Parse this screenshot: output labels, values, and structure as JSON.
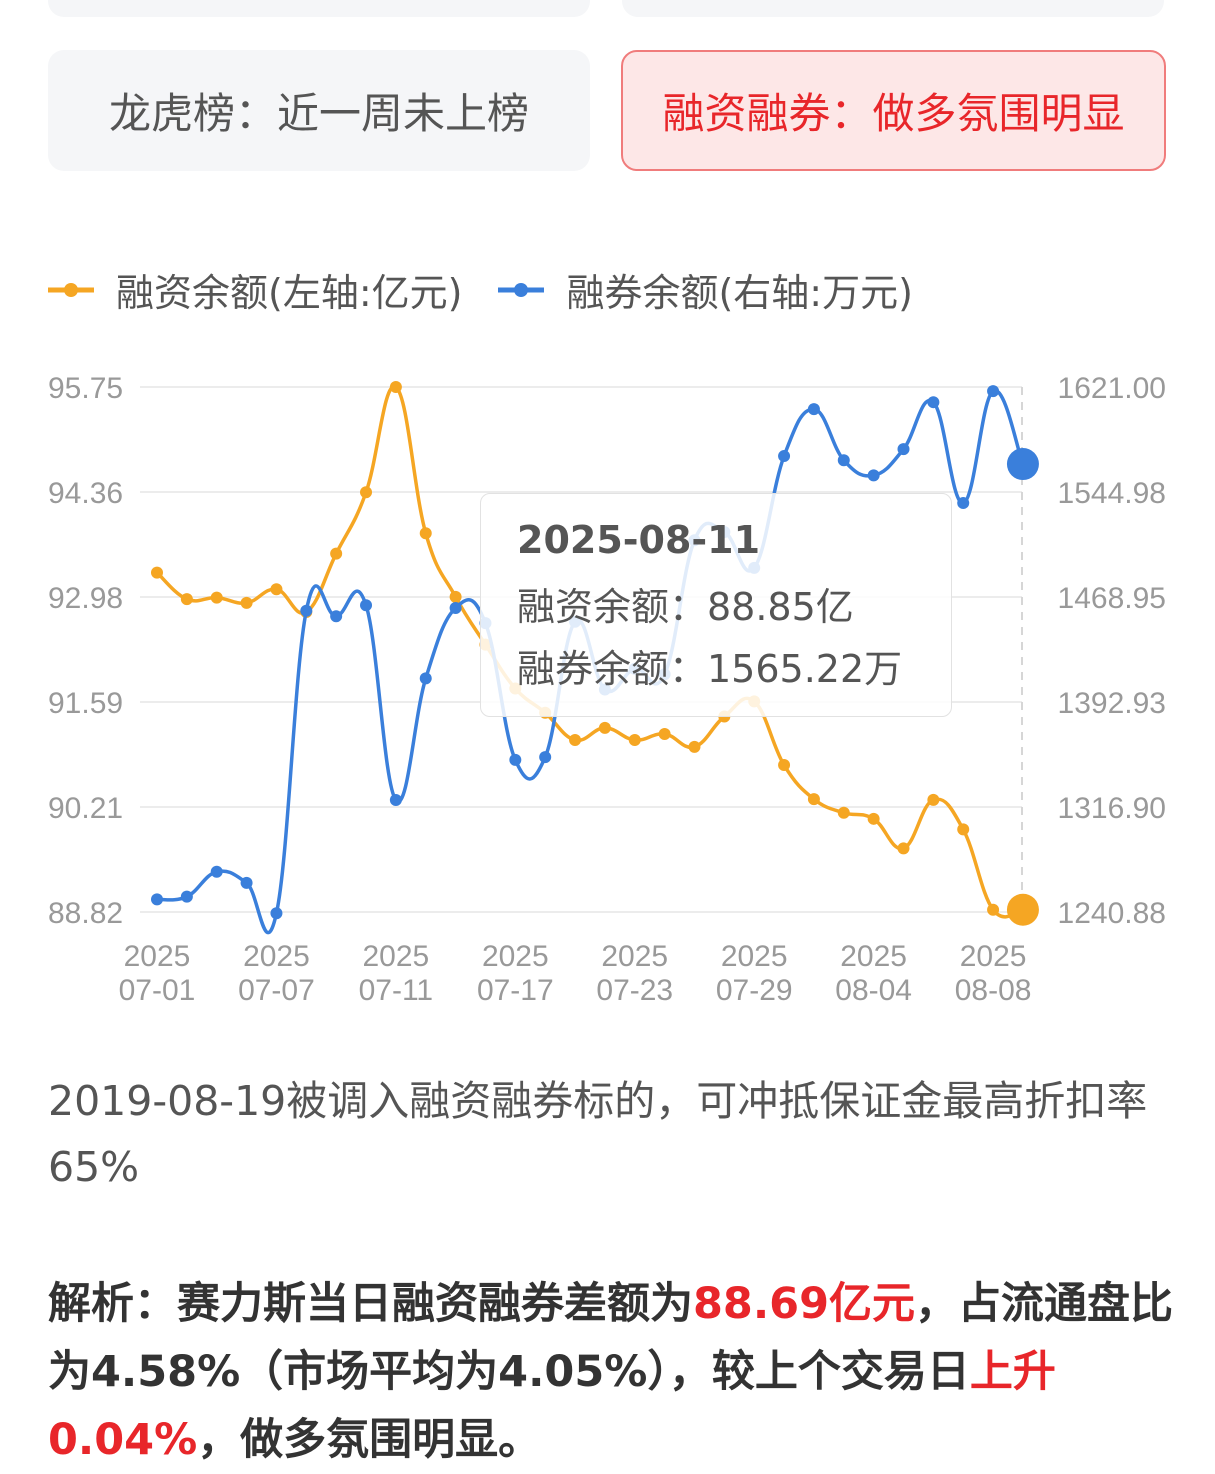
{
  "cards": {
    "top_left": "",
    "top_right": "",
    "dragon_tiger": "龙虎榜：近一周未上榜",
    "margin": "融资融券：做多氛围明显"
  },
  "colors": {
    "financing": "#f5a623",
    "lending": "#3a7fdb",
    "red": "#e8262a"
  },
  "legend": [
    {
      "label": "融资余额(左轴:亿元)"
    },
    {
      "label": "融券余额(右轴:万元)"
    }
  ],
  "tooltip": {
    "date": "2025-08-11",
    "financing": "融资余额：88.85亿",
    "lending": "融券余额：1565.22万"
  },
  "chart_data": {
    "type": "line",
    "x": [
      "2025-07-01",
      "2025-07-02",
      "2025-07-03",
      "2025-07-04",
      "2025-07-07",
      "2025-07-08",
      "2025-07-09",
      "2025-07-10",
      "2025-07-11",
      "2025-07-14",
      "2025-07-15",
      "2025-07-16",
      "2025-07-17",
      "2025-07-18",
      "2025-07-21",
      "2025-07-22",
      "2025-07-23",
      "2025-07-24",
      "2025-07-25",
      "2025-07-28",
      "2025-07-29",
      "2025-07-30",
      "2025-07-31",
      "2025-08-01",
      "2025-08-04",
      "2025-08-05",
      "2025-08-06",
      "2025-08-07",
      "2025-08-08",
      "2025-08-11"
    ],
    "tick_labels": [
      {
        "year": "2025",
        "date": "07-01",
        "index": 0
      },
      {
        "year": "2025",
        "date": "07-07",
        "index": 4
      },
      {
        "year": "2025",
        "date": "07-11",
        "index": 8
      },
      {
        "year": "2025",
        "date": "07-17",
        "index": 12
      },
      {
        "year": "2025",
        "date": "07-23",
        "index": 16
      },
      {
        "year": "2025",
        "date": "07-29",
        "index": 20
      },
      {
        "year": "2025",
        "date": "08-04",
        "index": 24
      },
      {
        "year": "2025",
        "date": "08-08",
        "index": 28
      }
    ],
    "y_left_ticks": [
      "95.75",
      "94.36",
      "92.98",
      "91.59",
      "90.21",
      "88.82"
    ],
    "y_right_ticks": [
      "1621.00",
      "1544.98",
      "1468.95",
      "1392.93",
      "1316.90",
      "1240.88"
    ],
    "y_left_range": [
      88.82,
      95.75
    ],
    "y_right_range": [
      1240.88,
      1621.0
    ],
    "series": [
      {
        "name": "融资余额(左轴:亿元)",
        "axis": "left",
        "values": [
          93.3,
          92.95,
          92.97,
          92.9,
          93.08,
          92.78,
          93.55,
          94.36,
          95.75,
          93.82,
          92.98,
          92.35,
          91.77,
          91.45,
          91.09,
          91.25,
          91.09,
          91.17,
          91.0,
          91.4,
          91.6,
          90.76,
          90.31,
          90.13,
          90.05,
          89.66,
          90.3,
          89.91,
          88.85,
          88.85
        ]
      },
      {
        "name": "融券余额(右轴:万元)",
        "axis": "right",
        "values": [
          1250,
          1252,
          1270,
          1262,
          1240,
          1459,
          1455,
          1463,
          1322,
          1410,
          1461,
          1450,
          1351,
          1353,
          1451,
          1402,
          1417,
          1413,
          1510,
          1516,
          1490,
          1571,
          1605,
          1568,
          1557,
          1576,
          1610,
          1537,
          1618,
          1565.22
        ]
      }
    ],
    "grid": true
  },
  "note": "2019-08-19被调入融资融券标的，可冲抵保证金最高折扣率65%",
  "analysis": {
    "prefix": "解析：赛力斯当日融资融券差额为",
    "amount": "88.69亿元",
    "middle": "，占流通盘比为4.58%（市场平均为4.05%），较上个交易日",
    "change": "上升0.04%",
    "suffix": "，做多氛围明显。"
  }
}
